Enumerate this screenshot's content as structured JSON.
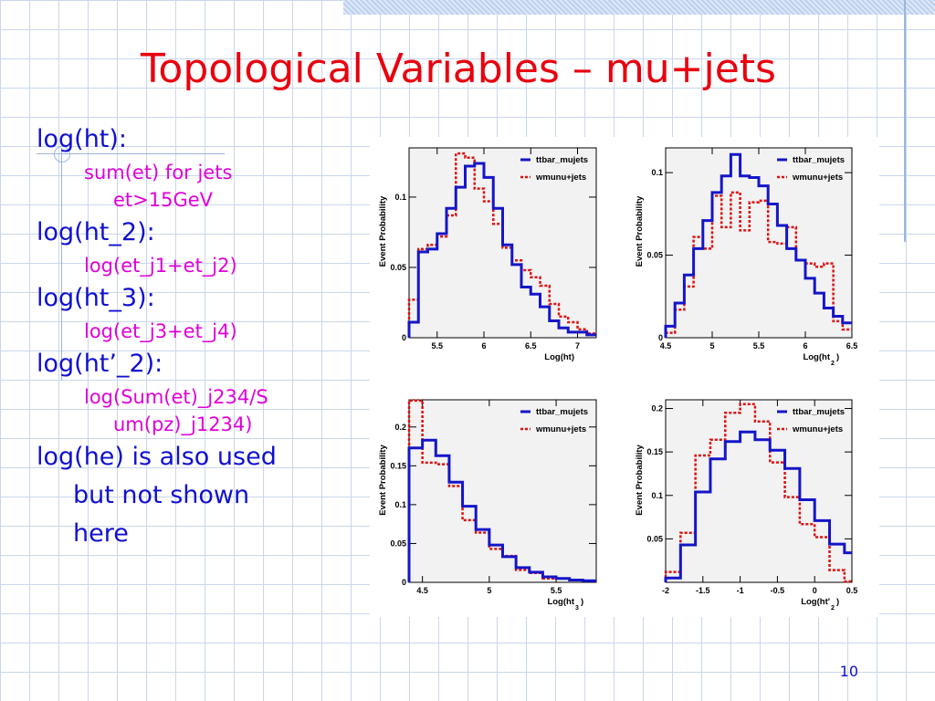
{
  "slide": {
    "title": "Topological Variables – mu+jets",
    "page_number": "10",
    "bullets": [
      {
        "text": "log(ht):",
        "sub": [
          "sum(et) for jets",
          "et>15GeV"
        ]
      },
      {
        "text": "log(ht_2):",
        "sub": [
          "log(et_j1+et_j2)"
        ]
      },
      {
        "text": "log(ht_3):",
        "sub": [
          "log(et_j3+et_j4)"
        ]
      },
      {
        "text": "log(ht’_2):",
        "sub": [
          "log(Sum(et)_j234/S",
          "um(pz)_j1234)"
        ]
      },
      {
        "text": [
          "log(he) is also used",
          "but not shown",
          "here"
        ]
      }
    ]
  },
  "colors": {
    "ttbar_mujets": "#1515c8",
    "wmunu_jets": "#e01010",
    "frame_bg": "#f2f2f2"
  },
  "chart_data": [
    {
      "type": "histogram",
      "xlabel": "Log(ht)",
      "xlabel_sub": "",
      "ylabel": "Event Probability",
      "xlim": [
        5.2,
        7.2
      ],
      "ylim": [
        0,
        0.135
      ],
      "xticks": [
        5.5,
        6,
        6.5,
        7
      ],
      "xtick_labels": [
        "5.5",
        "6",
        "6.5",
        "7"
      ],
      "yticks": [
        0,
        0.05,
        0.1
      ],
      "ytick_labels": [
        "0",
        "0.05",
        "0.1"
      ],
      "legend": [
        "ttbar_mujets",
        "wmunu+jets"
      ],
      "series": [
        {
          "name": "ttbar_mujets",
          "edges": [
            5.2,
            5.3,
            5.4,
            5.5,
            5.6,
            5.7,
            5.8,
            5.9,
            6.0,
            6.1,
            6.2,
            6.3,
            6.4,
            6.5,
            6.6,
            6.7,
            6.8,
            6.9,
            7.0,
            7.1,
            7.2
          ],
          "values": [
            0.011,
            0.061,
            0.063,
            0.074,
            0.092,
            0.107,
            0.122,
            0.124,
            0.114,
            0.092,
            0.066,
            0.052,
            0.036,
            0.031,
            0.022,
            0.012,
            0.007,
            0.004,
            0.004,
            0.002
          ]
        },
        {
          "name": "wmunu+jets",
          "edges": [
            5.2,
            5.3,
            5.4,
            5.5,
            5.6,
            5.7,
            5.8,
            5.9,
            6.0,
            6.1,
            6.2,
            6.3,
            6.4,
            6.5,
            6.6,
            6.7,
            6.8,
            6.9,
            7.0,
            7.1,
            7.2
          ],
          "values": [
            0.027,
            0.063,
            0.066,
            0.072,
            0.087,
            0.131,
            0.128,
            0.106,
            0.097,
            0.081,
            0.064,
            0.055,
            0.048,
            0.043,
            0.037,
            0.024,
            0.015,
            0.011,
            0.006,
            0.003
          ]
        }
      ]
    },
    {
      "type": "histogram",
      "xlabel": "Log(ht",
      "xlabel_sub": "2",
      "ylabel": "Event Probability",
      "xlim": [
        4.5,
        6.5
      ],
      "ylim": [
        0,
        0.115
      ],
      "xticks": [
        4.5,
        5,
        5.5,
        6,
        6.5
      ],
      "xtick_labels": [
        "4.5",
        "5",
        "5.5",
        "6",
        "6.5"
      ],
      "yticks": [
        0,
        0.05,
        0.1
      ],
      "ytick_labels": [
        "0",
        "0.05",
        "0.1"
      ],
      "legend": [
        "ttbar_mujets",
        "wmunu+jets"
      ],
      "series": [
        {
          "name": "ttbar_mujets",
          "edges": [
            4.5,
            4.6,
            4.7,
            4.8,
            4.9,
            5.0,
            5.1,
            5.2,
            5.3,
            5.4,
            5.5,
            5.6,
            5.7,
            5.8,
            5.9,
            6.0,
            6.1,
            6.2,
            6.3,
            6.4,
            6.5
          ],
          "values": [
            0.007,
            0.021,
            0.038,
            0.054,
            0.071,
            0.088,
            0.098,
            0.111,
            0.098,
            0.097,
            0.092,
            0.081,
            0.068,
            0.054,
            0.047,
            0.036,
            0.027,
            0.018,
            0.013,
            0.009
          ]
        },
        {
          "name": "wmunu+jets",
          "edges": [
            4.5,
            4.6,
            4.7,
            4.8,
            4.9,
            5.0,
            5.1,
            5.2,
            5.3,
            5.4,
            5.5,
            5.6,
            5.7,
            5.8,
            5.9,
            6.0,
            6.1,
            6.2,
            6.3,
            6.4,
            6.5
          ],
          "values": [
            0.003,
            0.017,
            0.031,
            0.061,
            0.054,
            0.086,
            0.067,
            0.088,
            0.065,
            0.082,
            0.083,
            0.058,
            0.057,
            0.067,
            0.047,
            0.045,
            0.043,
            0.045,
            0.01,
            0.005
          ]
        }
      ]
    },
    {
      "type": "histogram",
      "xlabel": "Log(ht",
      "xlabel_sub": "3",
      "ylabel": "Event Probability",
      "xlim": [
        4.4,
        5.8
      ],
      "ylim": [
        0,
        0.235
      ],
      "xticks": [
        4.5,
        5,
        5.5
      ],
      "xtick_labels": [
        "4.5",
        "5",
        "5.5"
      ],
      "yticks": [
        0,
        0.05,
        0.1,
        0.15,
        0.2
      ],
      "ytick_labels": [
        "0",
        "0.05",
        "0.1",
        "0.15",
        "0.2"
      ],
      "legend": [
        "ttbar_mujets",
        "wmunu+jets"
      ],
      "series": [
        {
          "name": "ttbar_mujets",
          "edges": [
            4.4,
            4.5,
            4.6,
            4.7,
            4.8,
            4.9,
            5.0,
            5.1,
            5.2,
            5.3,
            5.4,
            5.5,
            5.6,
            5.7,
            5.8
          ],
          "values": [
            0.173,
            0.183,
            0.163,
            0.129,
            0.098,
            0.068,
            0.048,
            0.033,
            0.019,
            0.013,
            0.007,
            0.005,
            0.003,
            0.002
          ]
        },
        {
          "name": "wmunu+jets",
          "edges": [
            4.4,
            4.5,
            4.6,
            4.7,
            4.8,
            4.9,
            5.0,
            5.1,
            5.2,
            5.3,
            5.4,
            5.5,
            5.6,
            5.7,
            5.8
          ],
          "values": [
            0.234,
            0.154,
            0.152,
            0.124,
            0.08,
            0.064,
            0.043,
            0.034,
            0.016,
            0.012,
            0.005,
            0.005,
            0.003,
            0.002
          ]
        }
      ]
    },
    {
      "type": "histogram",
      "xlabel": "Log(ht'",
      "xlabel_sub": "2",
      "ylabel": "Event Probability",
      "xlim": [
        -2,
        0.5
      ],
      "ylim": [
        0,
        0.21
      ],
      "xticks": [
        -2,
        -1.5,
        -1,
        -0.5,
        0,
        0.5
      ],
      "xtick_labels": [
        "-2",
        "-1.5",
        "-1",
        "-0.5",
        "0",
        "0.5"
      ],
      "yticks": [
        0.05,
        0.1,
        0.15,
        0.2
      ],
      "ytick_labels": [
        "0.05",
        "0.1",
        "0.15",
        "0.2"
      ],
      "legend": [
        "ttbar_mujets",
        "wmunu+jets"
      ],
      "series": [
        {
          "name": "ttbar_mujets",
          "edges": [
            -2,
            -1.8,
            -1.6,
            -1.4,
            -1.2,
            -1.0,
            -0.8,
            -0.6,
            -0.4,
            -0.2,
            0,
            0.2,
            0.4,
            0.5
          ],
          "values": [
            0.005,
            0.043,
            0.104,
            0.142,
            0.162,
            0.173,
            0.164,
            0.152,
            0.131,
            0.095,
            0.071,
            0.044,
            0.034
          ]
        },
        {
          "name": "wmunu+jets",
          "edges": [
            -2,
            -1.8,
            -1.6,
            -1.4,
            -1.2,
            -1.0,
            -0.8,
            -0.6,
            -0.4,
            -0.2,
            0,
            0.2,
            0.4,
            0.5
          ],
          "values": [
            0.012,
            0.057,
            0.146,
            0.164,
            0.195,
            0.205,
            0.185,
            0.138,
            0.098,
            0.067,
            0.052,
            0.014,
            0.001
          ]
        }
      ]
    }
  ]
}
